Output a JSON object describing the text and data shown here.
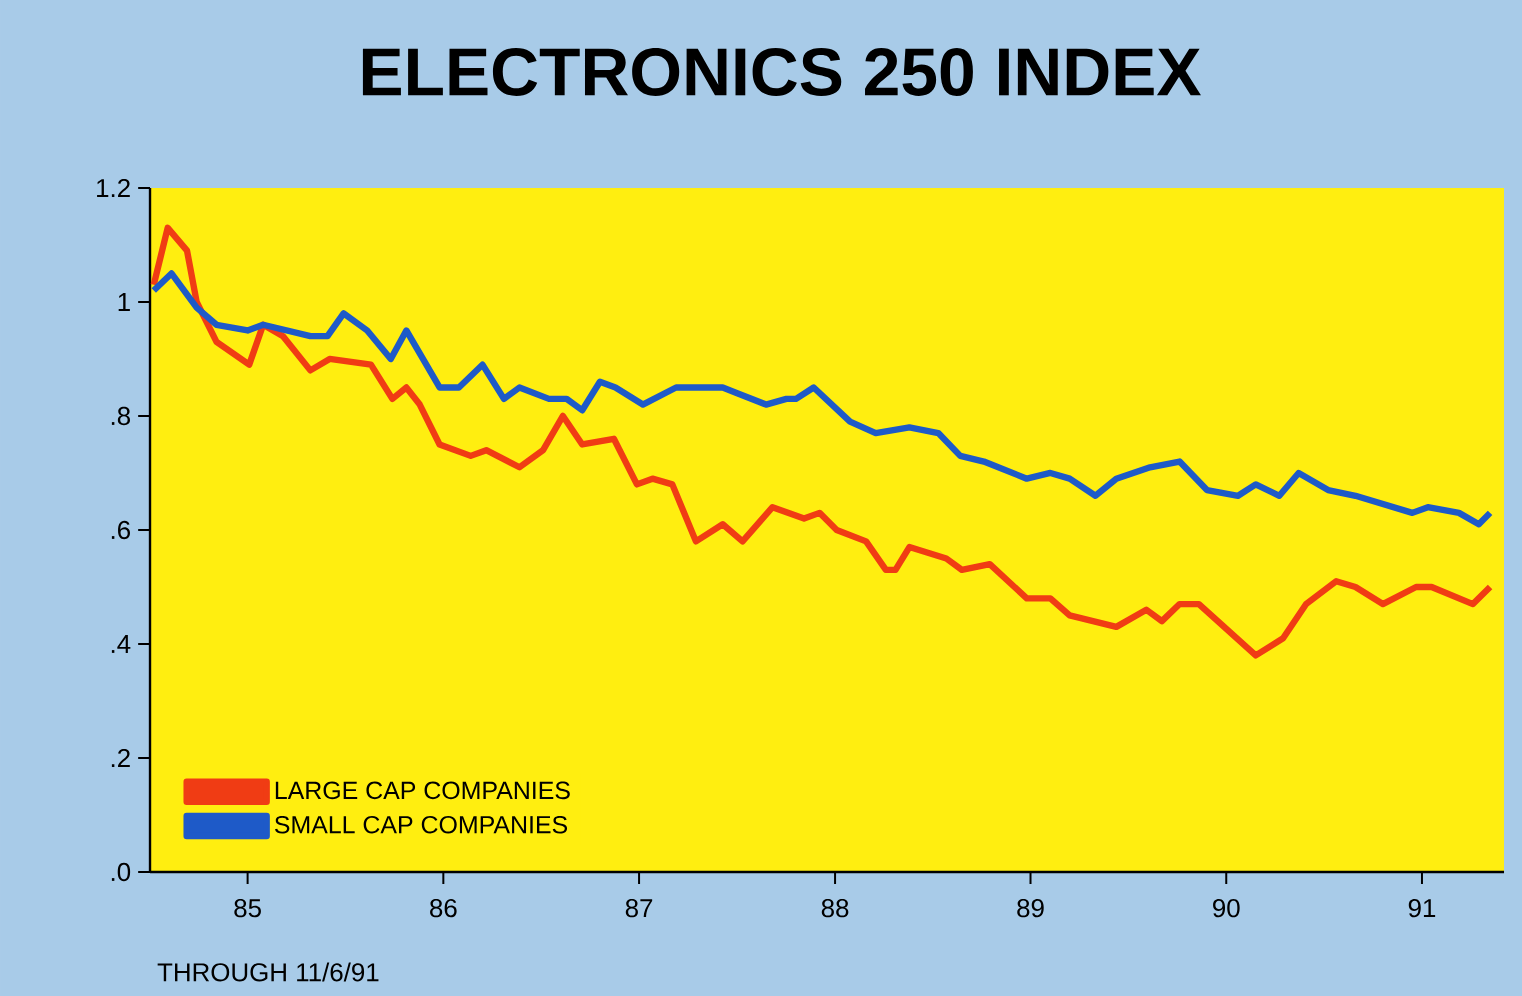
{
  "chart_data": {
    "type": "line",
    "title": "ELECTRONICS 250 INDEX",
    "annotations": [
      "THROUGH 11/6/91"
    ],
    "xlim": [
      "1985-01-01",
      "1991-12-02"
    ],
    "xticks": [
      {
        "value": "1985-07-02",
        "label": "85"
      },
      {
        "value": "1986-07-02",
        "label": "86"
      },
      {
        "value": "1987-07-02",
        "label": "87"
      },
      {
        "value": "1988-07-02",
        "label": "88"
      },
      {
        "value": "1989-07-02",
        "label": "89"
      },
      {
        "value": "1990-07-02",
        "label": "90"
      },
      {
        "value": "1991-07-02",
        "label": "91"
      }
    ],
    "ylim": [
      0,
      1.2
    ],
    "yticks": [
      {
        "value": 0,
        "label": ".0"
      },
      {
        "value": 0.2,
        "label": ".2"
      },
      {
        "value": 0.4,
        "label": ".4"
      },
      {
        "value": 0.6,
        "label": ".6"
      },
      {
        "value": 0.8,
        "label": ".8"
      },
      {
        "value": 1,
        "label": "1"
      },
      {
        "value": 1.2,
        "label": "1.2"
      }
    ],
    "grid": false,
    "legend": "bottom left",
    "line_style": "solid",
    "series": [
      {
        "name": "LARGE CAP COMPANIES",
        "color": "#f03c14",
        "x": [
          "1985-01-08",
          "1985-02-03",
          "1985-03-11",
          "1985-03-29",
          "1985-05-05",
          "1985-07-05",
          "1985-07-31",
          "1985-09-06",
          "1985-10-27",
          "1985-12-02",
          "1986-02-17",
          "1986-03-29",
          "1986-04-24",
          "1986-05-19",
          "1986-06-25",
          "1986-08-22",
          "1986-09-20",
          "1986-11-21",
          "1987-01-04",
          "1987-02-10",
          "1987-03-18",
          "1987-05-16",
          "1987-06-28",
          "1987-07-27",
          "1987-09-02",
          "1987-10-16",
          "1987-12-05",
          "1988-01-11",
          "1988-03-07",
          "1988-05-05",
          "1988-06-03",
          "1988-07-05",
          "1988-08-29",
          "1988-10-05",
          "1988-10-23",
          "1988-11-18",
          "1989-01-26",
          "1989-02-24",
          "1989-04-17",
          "1989-06-25",
          "1989-08-08",
          "1989-09-13",
          "1989-12-09",
          "1990-02-03",
          "1990-03-04",
          "1990-04-06",
          "1990-05-12",
          "1990-08-26",
          "1990-10-16",
          "1990-11-28",
          "1991-01-23",
          "1991-02-28",
          "1991-04-20",
          "1991-06-21",
          "1991-07-20",
          "1991-10-05",
          "1991-11-06"
        ],
        "values": [
          1.03,
          1.13,
          1.09,
          1.0,
          0.93,
          0.89,
          0.96,
          0.94,
          0.88,
          0.9,
          0.89,
          0.83,
          0.85,
          0.82,
          0.75,
          0.73,
          0.74,
          0.71,
          0.74,
          0.8,
          0.75,
          0.76,
          0.68,
          0.69,
          0.68,
          0.58,
          0.61,
          0.58,
          0.64,
          0.62,
          0.63,
          0.6,
          0.58,
          0.53,
          0.53,
          0.57,
          0.55,
          0.53,
          0.54,
          0.48,
          0.48,
          0.45,
          0.43,
          0.46,
          0.44,
          0.47,
          0.47,
          0.38,
          0.41,
          0.47,
          0.51,
          0.5,
          0.47,
          0.5,
          0.5,
          0.47,
          0.5
        ]
      },
      {
        "name": "SMALL CAP COMPANIES",
        "color": "#1e5ac8",
        "x": [
          "1985-01-08",
          "1985-02-10",
          "1985-03-29",
          "1985-05-05",
          "1985-07-02",
          "1985-07-31",
          "1985-10-27",
          "1985-11-28",
          "1985-12-28",
          "1986-02-10",
          "1986-03-26",
          "1986-04-24",
          "1986-06-25",
          "1986-07-31",
          "1986-09-13",
          "1986-10-23",
          "1986-11-21",
          "1987-01-15",
          "1987-02-17",
          "1987-03-18",
          "1987-04-20",
          "1987-05-19",
          "1987-07-09",
          "1987-09-09",
          "1987-12-05",
          "1988-01-01",
          "1988-02-24",
          "1988-04-02",
          "1988-04-20",
          "1988-05-23",
          "1988-07-30",
          "1988-09-16",
          "1988-11-18",
          "1989-01-11",
          "1989-02-21",
          "1989-04-06",
          "1989-06-25",
          "1989-08-08",
          "1989-09-13",
          "1989-10-31",
          "1989-12-09",
          "1990-02-10",
          "1990-04-06",
          "1990-05-27",
          "1990-07-24",
          "1990-08-26",
          "1990-10-09",
          "1990-11-14",
          "1991-01-08",
          "1991-02-28",
          "1991-06-14",
          "1991-07-13",
          "1991-09-09",
          "1991-10-16",
          "1991-11-06"
        ],
        "values": [
          1.02,
          1.05,
          0.99,
          0.96,
          0.95,
          0.96,
          0.94,
          0.94,
          0.98,
          0.95,
          0.9,
          0.95,
          0.85,
          0.85,
          0.89,
          0.83,
          0.85,
          0.83,
          0.83,
          0.81,
          0.86,
          0.85,
          0.82,
          0.85,
          0.85,
          0.84,
          0.82,
          0.83,
          0.83,
          0.85,
          0.79,
          0.77,
          0.78,
          0.77,
          0.73,
          0.72,
          0.69,
          0.7,
          0.69,
          0.66,
          0.69,
          0.71,
          0.72,
          0.67,
          0.66,
          0.68,
          0.66,
          0.7,
          0.67,
          0.66,
          0.63,
          0.64,
          0.63,
          0.61,
          0.63
        ]
      }
    ]
  }
}
